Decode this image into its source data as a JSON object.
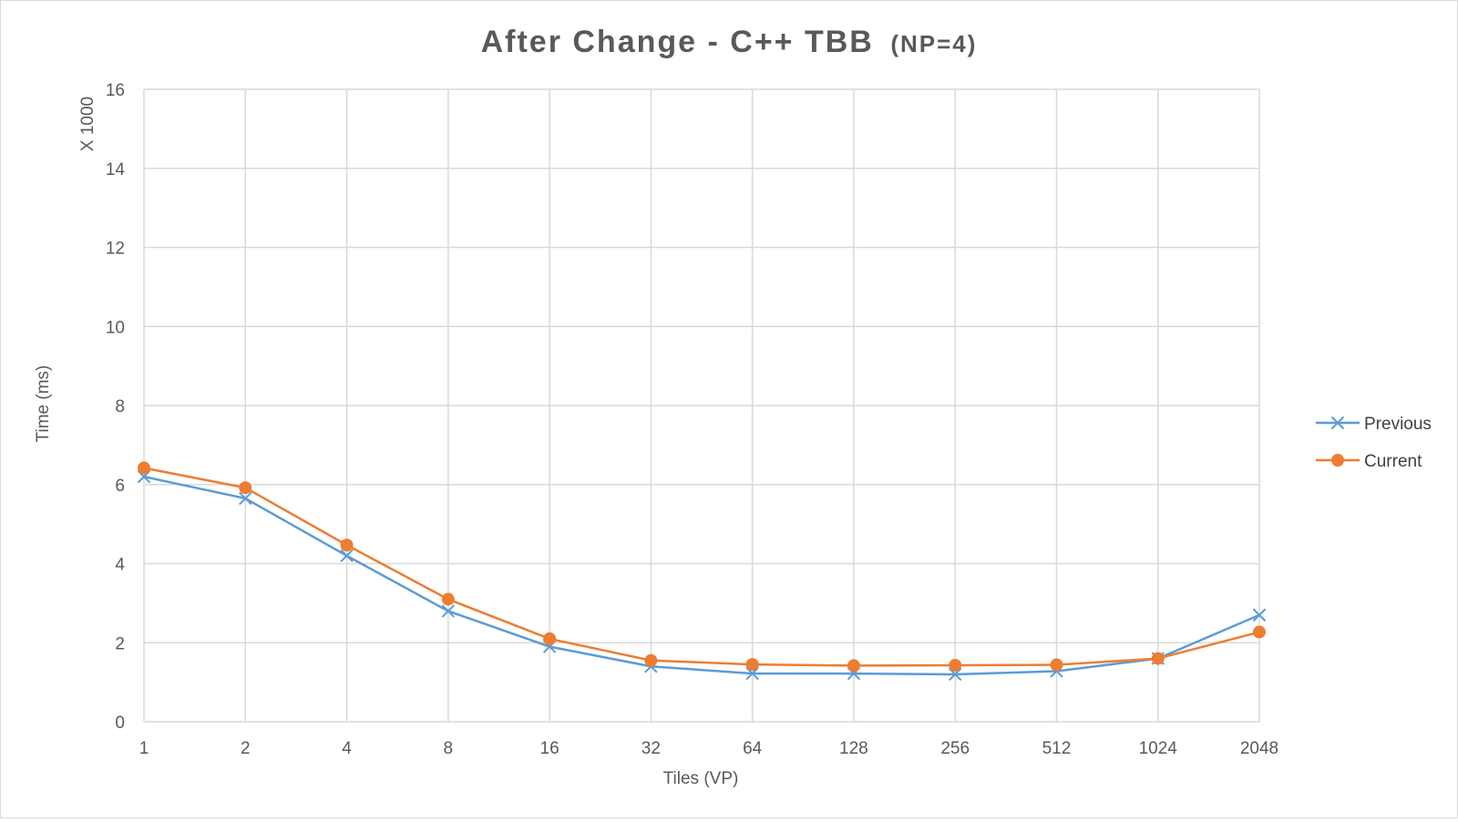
{
  "chart_data": {
    "type": "line",
    "title": "After Change - C++ TBB",
    "title_suffix": "(NP=4)",
    "xlabel": "Tiles (VP)",
    "ylabel": "Time (ms)",
    "y_unit_label": "X 1000",
    "categories": [
      "1",
      "2",
      "4",
      "8",
      "16",
      "32",
      "64",
      "128",
      "256",
      "512",
      "1024",
      "2048"
    ],
    "ylim": [
      0,
      16
    ],
    "yticks": [
      0,
      2,
      4,
      6,
      8,
      10,
      12,
      14,
      16
    ],
    "grid": true,
    "legend_position": "right",
    "series": [
      {
        "name": "Previous",
        "color": "#5b9bd5",
        "marker": "x",
        "values": [
          6.2,
          5.65,
          4.2,
          2.8,
          1.9,
          1.4,
          1.22,
          1.22,
          1.2,
          1.28,
          1.6,
          2.7
        ]
      },
      {
        "name": "Current",
        "color": "#ed7d31",
        "marker": "circle",
        "values": [
          6.42,
          5.92,
          4.47,
          3.1,
          2.1,
          1.55,
          1.45,
          1.42,
          1.43,
          1.44,
          1.6,
          2.27
        ]
      }
    ]
  }
}
